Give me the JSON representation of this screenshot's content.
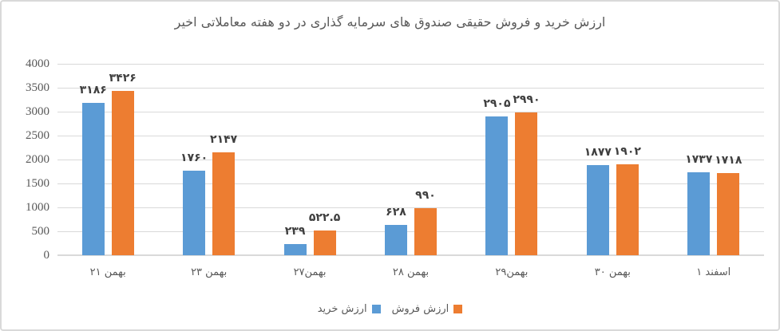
{
  "colors": {
    "buy": "#5B9BD5",
    "sell": "#ED7D31",
    "grid": "#D9D9D9",
    "axis_text": "#595959",
    "data_label_text": "#3F3F3F",
    "border": "#D9D9D9",
    "background": "#FFFFFF"
  },
  "chart_data": {
    "type": "bar",
    "title": "ارزش خرید و  فروش حقیقی صندوق های سرمایه گذاری در دو هفته معاملاتی اخیر",
    "categories": [
      "۲۱ بهمن",
      "۲۳ بهمن",
      "۲۷بهمن",
      "۲۸ بهمن",
      "۲۹بهمن",
      "۳۰ بهمن",
      "۱ اسفند"
    ],
    "series": [
      {
        "name": "ارزش خرید",
        "color_key": "buy",
        "values": [
          3186,
          1760,
          239,
          628,
          2905,
          1877,
          1737
        ],
        "labels": [
          "۳۱۸۶",
          "۱۷۶۰",
          "۲۳۹",
          "۶۲۸",
          "۲۹۰۵",
          "۱۸۷۷",
          "۱۷۳۷"
        ]
      },
      {
        "name": "ارزش فروش",
        "color_key": "sell",
        "values": [
          3426,
          2147,
          522.5,
          990,
          2990,
          1902,
          1718
        ],
        "labels": [
          "۳۴۲۶",
          "۲۱۴۷",
          "۵۲۲.۵",
          "۹۹۰",
          "۲۹۹۰",
          "۱۹۰۲",
          "۱۷۱۸"
        ]
      }
    ],
    "ylim": [
      0,
      4000
    ],
    "ytick_step": 500,
    "ytick_labels": [
      "0",
      "500",
      "1000",
      "1500",
      "2000",
      "2500",
      "3000",
      "3500",
      "4000"
    ],
    "grid": true,
    "legend_position": "bottom",
    "legend_marker_side": "right-of-label"
  }
}
